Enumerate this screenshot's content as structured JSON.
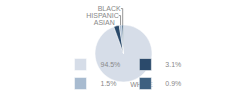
{
  "chart_data": {
    "type": "pie",
    "categories": [
      "WHITE",
      "ASIAN",
      "HISPANIC",
      "BLACK"
    ],
    "values": [
      94.5,
      3.1,
      1.5,
      0.9
    ],
    "value_labels": [
      "94.5%",
      "3.1%",
      "1.5%",
      "0.9%"
    ],
    "colors": [
      "#d6dde8",
      "#2b4a6b",
      "#a8bbd0",
      "#3d6080"
    ],
    "legend": "bottom"
  }
}
